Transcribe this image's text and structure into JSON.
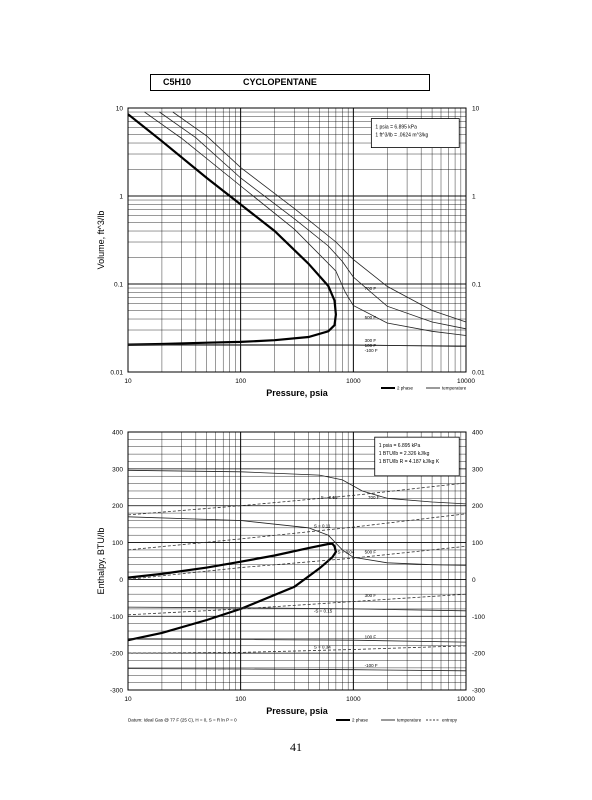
{
  "header": {
    "formula": "C5H10",
    "name": "CYCLOPENTANE"
  },
  "page_number": "41",
  "chart_data": [
    {
      "type": "line",
      "xlabel": "Pressure,  psia",
      "ylabel": "Volume, ft^3/lb",
      "x_scale": "log",
      "y_scale": "log",
      "xlim": [
        10,
        10000
      ],
      "ylim": [
        0.01,
        10
      ],
      "x_ticks": [
        "10",
        "100",
        "1000",
        "10000"
      ],
      "y_ticks": [
        "10",
        "1",
        "0.1",
        "0.01"
      ],
      "y_ticks_right": [
        "10",
        "1",
        "0.1",
        "0.01"
      ],
      "grid": true,
      "conversion_box": [
        "1 psia = 6.895 kPa",
        "1 ft^3/lb = .0624 m^3/kg"
      ],
      "legend": {
        "placement": "bottom-right",
        "entries": [
          "2 phase",
          "temperature"
        ]
      },
      "series": [
        {
          "name": "2 phase",
          "style": "bold",
          "x": [
            10,
            20,
            50,
            100,
            200,
            400,
            600,
            680,
            700,
            680,
            600,
            400,
            200,
            100,
            50,
            20,
            10
          ],
          "y": [
            8.5,
            4.2,
            1.6,
            0.8,
            0.4,
            0.17,
            0.095,
            0.065,
            0.045,
            0.034,
            0.029,
            0.025,
            0.023,
            0.022,
            0.0215,
            0.0208,
            0.0205
          ]
        },
        {
          "name": "",
          "style": "thin",
          "x": [
            14,
            30,
            100,
            300,
            700,
            850,
            1000,
            2000,
            5000,
            10000
          ],
          "y": [
            9.0,
            4.5,
            1.3,
            0.42,
            0.14,
            0.08,
            0.057,
            0.036,
            0.029,
            0.026
          ]
        },
        {
          "name": "",
          "style": "thin",
          "x": [
            19,
            40,
            100,
            300,
            600,
            800,
            1000,
            2000,
            5000,
            10000
          ],
          "y": [
            9.0,
            4.6,
            1.6,
            0.55,
            0.27,
            0.18,
            0.12,
            0.056,
            0.037,
            0.031
          ]
        },
        {
          "name": "",
          "style": "thin",
          "x": [
            25,
            50,
            100,
            300,
            700,
            1000,
            2000,
            5000,
            10000
          ],
          "y": [
            9.0,
            4.8,
            2.1,
            0.72,
            0.3,
            0.19,
            0.094,
            0.05,
            0.037
          ]
        },
        {
          "name": "",
          "style": "thin",
          "x": [
            10,
            100,
            1000,
            10000
          ],
          "y": [
            0.0205,
            0.0204,
            0.0203,
            0.0195
          ]
        }
      ],
      "annotations": [
        "700 F",
        "500 F",
        "300 F",
        "100 F",
        "-100 F"
      ]
    },
    {
      "type": "line",
      "xlabel": "Pressure,  psia",
      "ylabel": "Enthalpy, BTU/lb",
      "x_scale": "log",
      "xlim": [
        10,
        10000
      ],
      "ylim": [
        -300,
        400
      ],
      "x_ticks": [
        "10",
        "100",
        "1000",
        "10000"
      ],
      "y_ticks": [
        "400",
        "300",
        "200",
        "100",
        "0",
        "-100",
        "-200",
        "-300"
      ],
      "y_ticks_right": [
        "400",
        "300",
        "200",
        "100",
        "0",
        "-100",
        "-200",
        "-300"
      ],
      "grid": true,
      "conversion_box": [
        "1 psia = 6.895 kPa",
        "1 BTU/lb = 2.326 kJ/kg",
        "1 BTU/lb R = 4.187 kJ/kg K"
      ],
      "legend": {
        "placement": "bottom-right",
        "entries": [
          "2 phase",
          "temperature",
          "entropy"
        ]
      },
      "footnote": "Datum: Ideal Gas @ 77 F (25 C), H = 0, S = R ln P = 0",
      "series": [
        {
          "name": "2 phase",
          "style": "bold",
          "x": [
            10,
            20,
            50,
            100,
            200,
            400,
            600,
            650,
            680,
            700,
            650,
            500,
            300,
            100,
            50,
            20,
            10
          ],
          "y": [
            5,
            15,
            32,
            48,
            65,
            85,
            96,
            97,
            90,
            75,
            60,
            30,
            -20,
            -80,
            -110,
            -145,
            -165
          ]
        },
        {
          "name": "",
          "style": "thin",
          "x": [
            10,
            100,
            500,
            800,
            1200,
            2000,
            5000,
            10000
          ],
          "y": [
            296,
            292,
            283,
            270,
            240,
            220,
            210,
            205
          ]
        },
        {
          "name": "",
          "style": "thin",
          "x": [
            10,
            100,
            400,
            600,
            800,
            1000,
            2000,
            5000,
            10000
          ],
          "y": [
            170,
            160,
            140,
            120,
            80,
            60,
            45,
            40,
            38
          ]
        },
        {
          "name": "",
          "style": "thin",
          "x": [
            10,
            100,
            1000,
            10000
          ],
          "y": [
            -75,
            -77,
            -80,
            -85
          ]
        },
        {
          "name": "",
          "style": "thin",
          "x": [
            10,
            100,
            1000,
            10000
          ],
          "y": [
            -162,
            -163,
            -165,
            -170
          ]
        },
        {
          "name": "",
          "style": "thin",
          "x": [
            10,
            100,
            1000,
            10000
          ],
          "y": [
            -242,
            -243,
            -245,
            -248
          ]
        },
        {
          "name": "",
          "style": "dashed",
          "x": [
            10,
            100,
            1000,
            10000
          ],
          "y": [
            175,
            200,
            228,
            262
          ]
        },
        {
          "name": "",
          "style": "dashed",
          "x": [
            10,
            100,
            1000,
            10000
          ],
          "y": [
            80,
            110,
            142,
            178
          ]
        },
        {
          "name": "",
          "style": "dashed",
          "x": [
            10,
            100,
            1000,
            10000
          ],
          "y": [
            0,
            32,
            58,
            90
          ]
        },
        {
          "name": "",
          "style": "dashed",
          "x": [
            10,
            100,
            1000,
            10000
          ],
          "y": [
            -96,
            -80,
            -60,
            -40
          ]
        },
        {
          "name": "",
          "style": "dashed",
          "x": [
            10,
            100,
            1000,
            10000
          ],
          "y": [
            -200,
            -198,
            -190,
            -180
          ]
        }
      ],
      "annotations": [
        "S = 0.15",
        "700 F",
        "S = 0.11",
        "S = 0.04",
        "500 F",
        "300 F",
        "-S = 0.15",
        "100 F",
        "S = 0.34",
        "-100 F"
      ]
    }
  ]
}
